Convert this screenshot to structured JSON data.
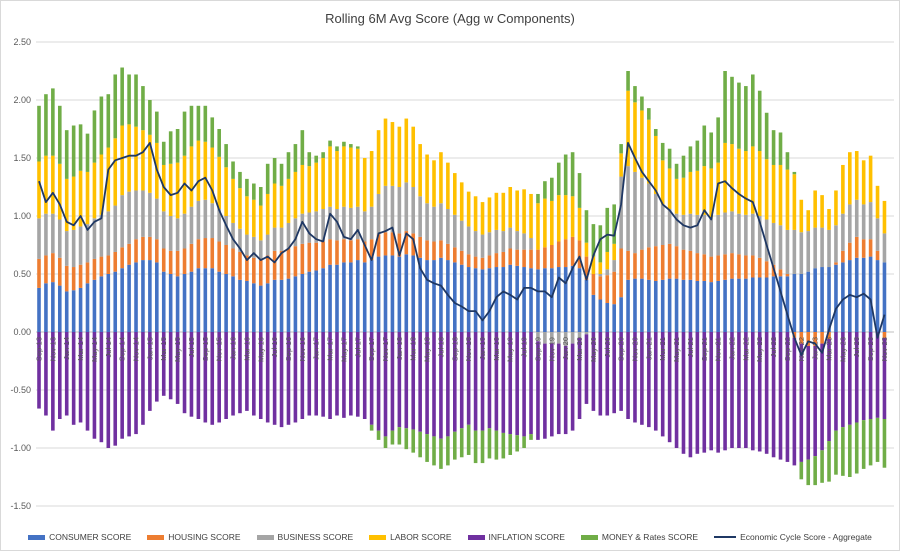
{
  "title": "Rolling 6M Avg Score (Agg w Components)",
  "y_axis": {
    "ticks": [
      {
        "label": "2.50",
        "value": 2.5
      },
      {
        "label": "2.00",
        "value": 2.0
      },
      {
        "label": "1.50",
        "value": 1.5
      },
      {
        "label": "1.00",
        "value": 1.0
      },
      {
        "label": "0.50",
        "value": 0.5
      },
      {
        "label": "0.00",
        "value": 0.0
      },
      {
        "label": "-0.50",
        "value": -0.5
      },
      {
        "label": "-1.00",
        "value": -1.0
      },
      {
        "label": "-1.50",
        "value": -1.5
      }
    ]
  },
  "colors": {
    "grid": "#d9d9d9",
    "zero_axis": "#bfbfbf",
    "tick_text": "#595959",
    "title_text": "#404040"
  },
  "chart_data": {
    "type": "combo-stacked-bar-line",
    "title": "Rolling 6M Avg Score (Agg w Components)",
    "ylim": [
      -1.5,
      2.5
    ],
    "grid": true,
    "legend_position": "bottom",
    "label_every": 2,
    "x": [
      "Sep-13",
      "Oct-13",
      "Nov-13",
      "Dec-13",
      "Jan-14",
      "Feb-14",
      "Mar-14",
      "Apr-14",
      "May-14",
      "Jun-14",
      "Jul-14",
      "Aug-14",
      "Sep-14",
      "Oct-14",
      "Nov-14",
      "Dec-14",
      "Jan-15",
      "Feb-15",
      "Mar-15",
      "Apr-15",
      "May-15",
      "Jun-15",
      "Jul-15",
      "Aug-15",
      "Sep-15",
      "Oct-15",
      "Nov-15",
      "Dec-15",
      "Jan-16",
      "Feb-16",
      "Mar-16",
      "Apr-16",
      "May-16",
      "Jun-16",
      "Jul-16",
      "Aug-16",
      "Sep-16",
      "Oct-16",
      "Nov-16",
      "Dec-16",
      "Jan-17",
      "Feb-17",
      "Mar-17",
      "Apr-17",
      "May-17",
      "Jun-17",
      "Jul-17",
      "Aug-17",
      "Sep-17",
      "Oct-17",
      "Nov-17",
      "Dec-17",
      "Jan-18",
      "Feb-18",
      "Mar-18",
      "Apr-18",
      "May-18",
      "Jun-18",
      "Jul-18",
      "Aug-18",
      "Sep-18",
      "Oct-18",
      "Nov-18",
      "Dec-18",
      "Jan-19",
      "Feb-19",
      "Mar-19",
      "Apr-19",
      "May-19",
      "Jun-19",
      "Jul-19",
      "Aug-19",
      "Sep-19",
      "Oct-19",
      "Nov-19",
      "Dec-19",
      "Jan-20",
      "Feb-20",
      "Mar-20",
      "Apr-20",
      "May-20",
      "Jun-20",
      "Jul-20",
      "Aug-20",
      "Sep-20",
      "Oct-20",
      "Nov-20",
      "Dec-20",
      "Jan-21",
      "Feb-21",
      "Mar-21",
      "Apr-21",
      "May-21",
      "Jun-21",
      "Jul-21",
      "Aug-21",
      "Sep-21",
      "Oct-21",
      "Nov-21",
      "Dec-21",
      "Jan-22",
      "Feb-22",
      "Mar-22",
      "Apr-22",
      "May-22",
      "Jun-22",
      "Jul-22",
      "Aug-22",
      "Sep-22",
      "Oct-22",
      "Nov-22",
      "Dec-22",
      "Jan-23",
      "Feb-23",
      "Mar-23",
      "Apr-23",
      "May-23",
      "Jun-23",
      "Jul-23",
      "Aug-23",
      "Sep-23",
      "Oct-23",
      "Nov-23"
    ],
    "series": [
      {
        "name": "CONSUMER SCORE",
        "color": "#4472C4",
        "values": [
          0.38,
          0.42,
          0.43,
          0.4,
          0.35,
          0.36,
          0.38,
          0.42,
          0.45,
          0.48,
          0.5,
          0.52,
          0.55,
          0.58,
          0.6,
          0.62,
          0.62,
          0.6,
          0.52,
          0.5,
          0.48,
          0.5,
          0.52,
          0.55,
          0.55,
          0.55,
          0.52,
          0.5,
          0.48,
          0.45,
          0.44,
          0.42,
          0.4,
          0.42,
          0.45,
          0.45,
          0.46,
          0.48,
          0.5,
          0.52,
          0.53,
          0.55,
          0.58,
          0.58,
          0.6,
          0.6,
          0.62,
          0.6,
          0.62,
          0.65,
          0.66,
          0.66,
          0.65,
          0.67,
          0.66,
          0.64,
          0.62,
          0.62,
          0.64,
          0.62,
          0.6,
          0.58,
          0.56,
          0.55,
          0.54,
          0.55,
          0.56,
          0.56,
          0.58,
          0.57,
          0.56,
          0.55,
          0.54,
          0.55,
          0.55,
          0.56,
          0.56,
          0.57,
          0.55,
          0.45,
          0.32,
          0.28,
          0.25,
          0.24,
          0.3,
          0.45,
          0.46,
          0.46,
          0.45,
          0.44,
          0.45,
          0.46,
          0.46,
          0.45,
          0.45,
          0.44,
          0.44,
          0.43,
          0.44,
          0.45,
          0.46,
          0.46,
          0.46,
          0.47,
          0.47,
          0.47,
          0.48,
          0.48,
          0.48,
          0.5,
          0.5,
          0.52,
          0.55,
          0.56,
          0.56,
          0.58,
          0.6,
          0.62,
          0.64,
          0.64,
          0.65,
          0.62,
          0.6
        ]
      },
      {
        "name": "HOUSING SCORE",
        "color": "#ED7D31",
        "values": [
          0.25,
          0.24,
          0.25,
          0.24,
          0.22,
          0.2,
          0.2,
          0.18,
          0.18,
          0.17,
          0.16,
          0.17,
          0.18,
          0.18,
          0.2,
          0.2,
          0.2,
          0.2,
          0.2,
          0.2,
          0.22,
          0.22,
          0.24,
          0.25,
          0.26,
          0.26,
          0.26,
          0.25,
          0.24,
          0.24,
          0.22,
          0.22,
          0.22,
          0.24,
          0.25,
          0.25,
          0.26,
          0.26,
          0.26,
          0.25,
          0.24,
          0.23,
          0.22,
          0.21,
          0.2,
          0.19,
          0.18,
          0.18,
          0.18,
          0.19,
          0.2,
          0.2,
          0.2,
          0.2,
          0.19,
          0.18,
          0.17,
          0.16,
          0.15,
          0.14,
          0.13,
          0.12,
          0.11,
          0.1,
          0.1,
          0.11,
          0.12,
          0.13,
          0.14,
          0.14,
          0.15,
          0.16,
          0.17,
          0.18,
          0.2,
          0.22,
          0.24,
          0.25,
          0.24,
          0.2,
          0.18,
          0.2,
          0.24,
          0.28,
          0.42,
          0.25,
          0.22,
          0.25,
          0.28,
          0.3,
          0.3,
          0.3,
          0.28,
          0.26,
          0.25,
          0.24,
          0.23,
          0.22,
          0.22,
          0.22,
          0.22,
          0.21,
          0.2,
          0.19,
          0.17,
          0.14,
          0.1,
          0.06,
          0.02,
          -0.05,
          -0.1,
          -0.12,
          -0.12,
          -0.1,
          -0.06,
          0.02,
          0.1,
          0.15,
          0.18,
          0.16,
          0.15,
          0.08,
          -0.05
        ]
      },
      {
        "name": "BUSINESS SCORE",
        "color": "#A5A5A5",
        "values": [
          0.35,
          0.36,
          0.34,
          0.33,
          0.3,
          0.32,
          0.33,
          0.33,
          0.35,
          0.36,
          0.38,
          0.4,
          0.45,
          0.45,
          0.42,
          0.4,
          0.38,
          0.35,
          0.32,
          0.3,
          0.28,
          0.3,
          0.32,
          0.33,
          0.33,
          0.3,
          0.28,
          0.25,
          0.22,
          0.2,
          0.18,
          0.18,
          0.17,
          0.18,
          0.2,
          0.2,
          0.22,
          0.24,
          0.26,
          0.26,
          0.27,
          0.28,
          0.28,
          0.27,
          0.28,
          0.28,
          0.28,
          0.26,
          0.28,
          0.35,
          0.4,
          0.4,
          0.4,
          0.42,
          0.4,
          0.35,
          0.32,
          0.3,
          0.32,
          0.3,
          0.28,
          0.26,
          0.24,
          0.22,
          0.2,
          0.2,
          0.2,
          0.18,
          0.18,
          0.16,
          0.14,
          0.1,
          -0.08,
          -0.1,
          -0.1,
          -0.1,
          -0.12,
          -0.1,
          -0.05,
          -0.02,
          0.0,
          0.02,
          0.05,
          0.1,
          0.62,
          0.73,
          0.7,
          0.62,
          0.55,
          0.45,
          0.35,
          0.3,
          0.28,
          0.3,
          0.32,
          0.33,
          0.34,
          0.34,
          0.35,
          0.36,
          0.36,
          0.35,
          0.35,
          0.36,
          0.36,
          0.36,
          0.36,
          0.38,
          0.38,
          0.38,
          0.36,
          0.35,
          0.35,
          0.34,
          0.32,
          0.32,
          0.32,
          0.33,
          0.32,
          0.3,
          0.32,
          0.28,
          0.25
        ]
      },
      {
        "name": "LABOR SCORE",
        "color": "#FFC000",
        "values": [
          0.49,
          0.5,
          0.5,
          0.48,
          0.45,
          0.46,
          0.48,
          0.45,
          0.48,
          0.52,
          0.55,
          0.58,
          0.6,
          0.58,
          0.55,
          0.52,
          0.5,
          0.48,
          0.4,
          0.45,
          0.48,
          0.5,
          0.52,
          0.52,
          0.5,
          0.48,
          0.45,
          0.42,
          0.38,
          0.35,
          0.33,
          0.32,
          0.3,
          0.35,
          0.38,
          0.36,
          0.38,
          0.4,
          0.42,
          0.4,
          0.42,
          0.44,
          0.52,
          0.5,
          0.52,
          0.52,
          0.5,
          0.46,
          0.48,
          0.55,
          0.58,
          0.55,
          0.52,
          0.55,
          0.52,
          0.45,
          0.42,
          0.4,
          0.44,
          0.4,
          0.36,
          0.33,
          0.3,
          0.3,
          0.28,
          0.3,
          0.32,
          0.33,
          0.35,
          0.35,
          0.38,
          0.38,
          0.4,
          0.42,
          0.38,
          0.4,
          0.38,
          0.35,
          0.28,
          0.12,
          0.15,
          0.1,
          0.15,
          0.14,
          0.2,
          0.65,
          0.6,
          0.58,
          0.55,
          0.5,
          0.38,
          0.35,
          0.3,
          0.32,
          0.36,
          0.38,
          0.42,
          0.42,
          0.45,
          0.6,
          0.58,
          0.56,
          0.55,
          0.58,
          0.56,
          0.52,
          0.5,
          0.52,
          0.52,
          0.48,
          0.28,
          0.18,
          0.32,
          0.28,
          0.18,
          0.3,
          0.42,
          0.45,
          0.42,
          0.38,
          0.4,
          0.28,
          0.28
        ]
      },
      {
        "name": "INFLATION SCORE",
        "color": "#7030A0",
        "values": [
          -0.66,
          -0.72,
          -0.85,
          -0.75,
          -0.72,
          -0.8,
          -0.78,
          -0.85,
          -0.92,
          -0.95,
          -1.0,
          -0.98,
          -0.92,
          -0.9,
          -0.88,
          -0.8,
          -0.68,
          -0.6,
          -0.55,
          -0.58,
          -0.62,
          -0.7,
          -0.73,
          -0.75,
          -0.78,
          -0.8,
          -0.78,
          -0.75,
          -0.72,
          -0.7,
          -0.68,
          -0.72,
          -0.75,
          -0.78,
          -0.8,
          -0.82,
          -0.8,
          -0.78,
          -0.75,
          -0.72,
          -0.72,
          -0.73,
          -0.75,
          -0.72,
          -0.74,
          -0.72,
          -0.73,
          -0.75,
          -0.8,
          -0.85,
          -0.9,
          -0.85,
          -0.82,
          -0.83,
          -0.84,
          -0.86,
          -0.88,
          -0.9,
          -0.92,
          -0.9,
          -0.86,
          -0.83,
          -0.8,
          -0.85,
          -0.85,
          -0.83,
          -0.85,
          -0.87,
          -0.88,
          -0.89,
          -0.9,
          -0.88,
          -0.85,
          -0.82,
          -0.8,
          -0.78,
          -0.76,
          -0.75,
          -0.7,
          -0.6,
          -0.68,
          -0.72,
          -0.72,
          -0.7,
          -0.68,
          -0.75,
          -0.78,
          -0.8,
          -0.82,
          -0.85,
          -0.9,
          -0.95,
          -1.0,
          -1.05,
          -1.08,
          -1.05,
          -1.04,
          -1.02,
          -1.04,
          -1.02,
          -1.0,
          -1.0,
          -1.0,
          -1.02,
          -1.03,
          -1.05,
          -1.08,
          -1.1,
          -1.12,
          -1.1,
          -1.02,
          -0.98,
          -0.95,
          -0.92,
          -0.88,
          -0.85,
          -0.82,
          -0.8,
          -0.78,
          -0.76,
          -0.75,
          -0.74,
          -0.7
        ]
      },
      {
        "name": "MONEY & Rates SCORE",
        "color": "#70AD47",
        "values": [
          0.48,
          0.53,
          0.58,
          0.5,
          0.42,
          0.44,
          0.4,
          0.33,
          0.45,
          0.5,
          0.46,
          0.55,
          0.5,
          0.43,
          0.45,
          0.38,
          0.3,
          0.27,
          0.2,
          0.28,
          0.29,
          0.38,
          0.35,
          0.3,
          0.31,
          0.26,
          0.24,
          0.2,
          0.15,
          0.14,
          0.15,
          0.14,
          0.16,
          0.26,
          0.22,
          0.19,
          0.23,
          0.24,
          0.3,
          0.12,
          0.06,
          0.05,
          0.05,
          0.04,
          0.04,
          0.03,
          0.02,
          0.0,
          -0.05,
          -0.08,
          -0.1,
          -0.12,
          -0.15,
          -0.18,
          -0.2,
          -0.22,
          -0.24,
          -0.25,
          -0.26,
          -0.25,
          -0.24,
          -0.25,
          -0.26,
          -0.28,
          -0.28,
          -0.26,
          -0.25,
          -0.22,
          -0.18,
          -0.14,
          -0.1,
          -0.05,
          0.08,
          0.15,
          0.2,
          0.28,
          0.35,
          0.38,
          0.3,
          0.28,
          0.28,
          0.32,
          0.38,
          0.34,
          0.08,
          0.17,
          0.14,
          0.12,
          0.1,
          0.06,
          0.15,
          0.17,
          0.13,
          0.19,
          0.22,
          0.26,
          0.35,
          0.31,
          0.39,
          0.62,
          0.58,
          0.57,
          0.56,
          0.62,
          0.52,
          0.4,
          0.3,
          0.28,
          0.15,
          0.02,
          -0.15,
          -0.22,
          -0.25,
          -0.28,
          -0.35,
          -0.38,
          -0.42,
          -0.45,
          -0.44,
          -0.42,
          -0.4,
          -0.38,
          -0.42
        ]
      }
    ],
    "line": {
      "name": "Economic Cycle Score - Aggregate",
      "color": "#1F3864",
      "values": [
        1.3,
        1.12,
        1.2,
        1.1,
        0.95,
        0.92,
        1.0,
        0.88,
        0.95,
        0.98,
        1.4,
        1.48,
        1.5,
        1.52,
        1.52,
        1.55,
        1.63,
        1.4,
        1.25,
        1.18,
        1.2,
        1.28,
        1.22,
        1.3,
        1.33,
        1.22,
        1.05,
        0.92,
        0.8,
        0.72,
        0.62,
        0.68,
        0.62,
        0.65,
        0.6,
        0.68,
        0.72,
        0.8,
        0.95,
        0.85,
        0.8,
        0.78,
        1.02,
        0.95,
        0.82,
        0.8,
        0.88,
        0.75,
        0.62,
        0.85,
        0.87,
        0.9,
        0.66,
        0.85,
        0.8,
        0.55,
        0.45,
        0.42,
        0.4,
        0.32,
        0.25,
        0.22,
        0.18,
        0.18,
        0.1,
        0.18,
        0.3,
        0.35,
        0.32,
        0.28,
        0.38,
        0.38,
        0.35,
        0.35,
        0.3,
        0.47,
        0.42,
        0.55,
        0.65,
        0.45,
        0.66,
        0.8,
        0.84,
        0.83,
        1.1,
        1.63,
        1.5,
        1.38,
        1.3,
        1.22,
        1.1,
        1.05,
        0.97,
        0.92,
        0.9,
        0.92,
        1.05,
        0.97,
        1.28,
        1.3,
        1.24,
        1.19,
        1.15,
        1.12,
        0.95,
        0.75,
        0.55,
        0.35,
        0.15,
        -0.05,
        -0.2,
        -0.08,
        -0.1,
        -0.18,
        0.02,
        0.2,
        0.28,
        0.32,
        0.3,
        0.33,
        0.28,
        -0.05,
        0.15
      ]
    }
  },
  "legend": [
    {
      "label": "CONSUMER SCORE",
      "color": "#4472C4",
      "type": "bar"
    },
    {
      "label": "HOUSING SCORE",
      "color": "#ED7D31",
      "type": "bar"
    },
    {
      "label": "BUSINESS SCORE",
      "color": "#A5A5A5",
      "type": "bar"
    },
    {
      "label": "LABOR SCORE",
      "color": "#FFC000",
      "type": "bar"
    },
    {
      "label": "INFLATION SCORE",
      "color": "#7030A0",
      "type": "bar"
    },
    {
      "label": "MONEY & Rates SCORE",
      "color": "#70AD47",
      "type": "bar"
    },
    {
      "label": "Economic Cycle Score - Aggregate",
      "color": "#1F3864",
      "type": "line"
    }
  ]
}
